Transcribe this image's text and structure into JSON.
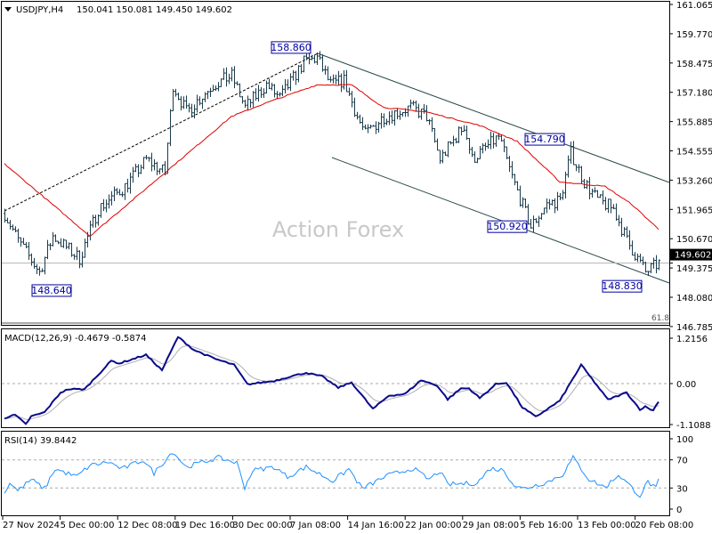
{
  "header": {
    "symbol": "USDJPY,H4",
    "ohlc": "150.041 150.081 149.450 149.602"
  },
  "watermark": "Action Forex",
  "chart_data": [
    {
      "type": "ohlc",
      "title": "USDJPY,H4",
      "ylim": [
        146.785,
        161.065
      ],
      "price_ticks": [
        "161.065",
        "159.770",
        "158.475",
        "157.180",
        "155.885",
        "154.555",
        "153.260",
        "151.965",
        "150.670",
        "149.375",
        "148.080",
        "146.785"
      ],
      "current_price": "149.602",
      "close_path": [
        [
          0,
          151.8
        ],
        [
          5,
          150.6
        ],
        [
          13,
          149.2
        ],
        [
          18,
          150.8
        ],
        [
          28,
          149.8
        ],
        [
          35,
          152.0
        ],
        [
          45,
          153.0
        ],
        [
          53,
          154.2
        ],
        [
          60,
          153.6
        ],
        [
          63,
          157.5
        ],
        [
          68,
          156.3
        ],
        [
          78,
          157.5
        ],
        [
          85,
          157.9
        ],
        [
          90,
          156.5
        ],
        [
          98,
          157.5
        ],
        [
          103,
          156.9
        ],
        [
          112,
          158.5
        ],
        [
          117,
          158.7
        ],
        [
          122,
          157.5
        ],
        [
          127,
          157.7
        ],
        [
          132,
          156.1
        ],
        [
          135,
          155.3
        ],
        [
          142,
          156.1
        ],
        [
          152,
          156.5
        ],
        [
          158,
          156.1
        ],
        [
          163,
          154.2
        ],
        [
          172,
          155.7
        ],
        [
          175,
          154.2
        ],
        [
          185,
          155.2
        ],
        [
          190,
          153.4
        ],
        [
          197,
          151.2
        ],
        [
          203,
          152.2
        ],
        [
          208,
          152.4
        ],
        [
          212,
          154.5
        ],
        [
          217,
          153.2
        ],
        [
          222,
          152.4
        ],
        [
          228,
          152.0
        ],
        [
          233,
          150.6
        ],
        [
          240,
          149.2
        ],
        [
          245,
          149.6
        ]
      ],
      "moving_average": [
        [
          0,
          154.0
        ],
        [
          32,
          150.8
        ],
        [
          85,
          156.1
        ],
        [
          98,
          156.7
        ],
        [
          117,
          157.5
        ],
        [
          130,
          157.5
        ],
        [
          142,
          156.5
        ],
        [
          158,
          156.3
        ],
        [
          178,
          155.7
        ],
        [
          192,
          155.0
        ],
        [
          208,
          153.2
        ],
        [
          225,
          153.0
        ],
        [
          235,
          152.2
        ],
        [
          245,
          151.1
        ]
      ],
      "annotations": [
        {
          "text": "158.860",
          "t": 116,
          "price": 158.86
        },
        {
          "text": "154.790",
          "t": 211,
          "price": 154.79
        },
        {
          "text": "150.920",
          "t": 197,
          "price": 150.92
        },
        {
          "text": "148.830",
          "t": 240,
          "price": 148.83
        },
        {
          "text": "148.640",
          "t": 13,
          "price": 148.64
        }
      ],
      "fib_label": "61.8"
    },
    {
      "type": "line",
      "title": "MACD(12,26,9) -0.4679 -0.5874",
      "ylim": [
        -1.1088,
        1.2156
      ],
      "ticks": [
        "1.2156",
        "0.00",
        "-1.1088"
      ],
      "series": [
        {
          "name": "MACD",
          "points": [
            [
              0,
              -0.92
            ],
            [
              4,
              -0.84
            ],
            [
              8,
              -1.09
            ],
            [
              10,
              -0.88
            ],
            [
              15,
              -0.77
            ],
            [
              21,
              -0.24
            ],
            [
              24,
              -0.15
            ],
            [
              30,
              -0.15
            ],
            [
              40,
              0.61
            ],
            [
              43,
              0.54
            ],
            [
              53,
              0.77
            ],
            [
              59,
              0.36
            ],
            [
              65,
              1.25
            ],
            [
              71,
              0.9
            ],
            [
              79,
              0.66
            ],
            [
              86,
              0.5
            ],
            [
              91,
              -0.02
            ],
            [
              101,
              0.07
            ],
            [
              107,
              0.19
            ],
            [
              113,
              0.29
            ],
            [
              119,
              0.19
            ],
            [
              125,
              -0.11
            ],
            [
              130,
              0.03
            ],
            [
              138,
              -0.68
            ],
            [
              144,
              -0.32
            ],
            [
              150,
              -0.28
            ],
            [
              156,
              0.09
            ],
            [
              162,
              -0.05
            ],
            [
              166,
              -0.42
            ],
            [
              171,
              -0.13
            ],
            [
              174,
              -0.13
            ],
            [
              178,
              -0.39
            ],
            [
              184,
              -0.02
            ],
            [
              188,
              0.03
            ],
            [
              194,
              -0.64
            ],
            [
              199,
              -0.89
            ],
            [
              208,
              -0.46
            ],
            [
              216,
              0.5
            ],
            [
              226,
              -0.43
            ],
            [
              233,
              -0.24
            ],
            [
              238,
              -0.69
            ],
            [
              240,
              -0.62
            ],
            [
              243,
              -0.72
            ],
            [
              245,
              -0.47
            ]
          ]
        }
      ]
    },
    {
      "type": "line",
      "title": "RSI(14) 39.8442",
      "ylim": [
        0,
        100
      ],
      "ticks": [
        "100",
        "70",
        "30",
        "0"
      ],
      "series": [
        {
          "name": "RSI",
          "points": [
            [
              0,
              22
            ],
            [
              2,
              38
            ],
            [
              5,
              26
            ],
            [
              10,
              42
            ],
            [
              15,
              29
            ],
            [
              19,
              57
            ],
            [
              27,
              46
            ],
            [
              32,
              62
            ],
            [
              39,
              67
            ],
            [
              44,
              57
            ],
            [
              52,
              70
            ],
            [
              56,
              51
            ],
            [
              63,
              82
            ],
            [
              68,
              60
            ],
            [
              80,
              73
            ],
            [
              87,
              66
            ],
            [
              90,
              31
            ],
            [
              93,
              55
            ],
            [
              101,
              60
            ],
            [
              106,
              46
            ],
            [
              113,
              60
            ],
            [
              123,
              40
            ],
            [
              129,
              57
            ],
            [
              134,
              29
            ],
            [
              143,
              47
            ],
            [
              153,
              58
            ],
            [
              159,
              42
            ],
            [
              163,
              54
            ],
            [
              166,
              35
            ],
            [
              177,
              37
            ],
            [
              182,
              58
            ],
            [
              187,
              55
            ],
            [
              191,
              34
            ],
            [
              194,
              29
            ],
            [
              203,
              38
            ],
            [
              209,
              49
            ],
            [
              213,
              73
            ],
            [
              219,
              42
            ],
            [
              225,
              31
            ],
            [
              230,
              49
            ],
            [
              238,
              19
            ],
            [
              241,
              39
            ],
            [
              244,
              29
            ],
            [
              245,
              40
            ]
          ]
        }
      ]
    }
  ],
  "x_ticks": [
    "27 Nov 2024",
    "5 Dec 00:00",
    "12 Dec 08:00",
    "19 Dec 16:00",
    "30 Dec 00:00",
    "7 Jan 08:00",
    "14 Jan 16:00",
    "22 Jan 00:00",
    "29 Jan 08:00",
    "5 Feb 16:00",
    "13 Feb 00:00",
    "20 Feb 08:00"
  ],
  "colors": {
    "bars": "#1c3d4e",
    "ma": "#e00000",
    "macd": "#0a0a8c",
    "signal": "#b0b0b0",
    "rsi": "#1e90ff",
    "annotation": "#0000a0"
  }
}
